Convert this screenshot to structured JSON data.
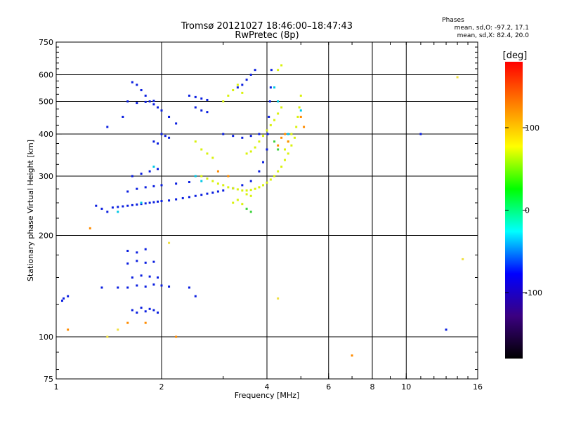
{
  "chart_data": {
    "type": "scatter",
    "title": "Tromsø 20121027 18:46:00–18:47:43",
    "subtitle": "RwPretec (8p)",
    "xlabel": "Frequency [MHz]",
    "ylabel": "Stationary phase Virtual Height [km]",
    "x_scale": "log",
    "y_scale": "log",
    "xlim": [
      1,
      16
    ],
    "ylim": [
      75,
      750
    ],
    "x_ticks": [
      {
        "value": 1,
        "label": "1"
      },
      {
        "value": 2,
        "label": "2"
      },
      {
        "value": 4,
        "label": "4"
      },
      {
        "value": 6,
        "label": "6"
      },
      {
        "value": 8,
        "label": "8"
      },
      {
        "value": 10,
        "label": "10"
      },
      {
        "value": 16,
        "label": "16"
      }
    ],
    "y_ticks": [
      {
        "value": 75,
        "label": "75"
      },
      {
        "value": 100,
        "label": "100"
      },
      {
        "value": 200,
        "label": "200"
      },
      {
        "value": 300,
        "label": "300"
      },
      {
        "value": 400,
        "label": "400"
      },
      {
        "value": 500,
        "label": "500"
      },
      {
        "value": 600,
        "label": "600"
      },
      {
        "value": 750,
        "label": "750"
      }
    ],
    "x_grid": [
      2,
      4,
      6,
      8,
      10
    ],
    "y_grid": [
      100,
      200,
      300,
      400,
      500,
      600
    ],
    "grid": true,
    "phase_legend": {
      "title": "Phases",
      "line1": "mean, sd,O: -97.2, 17.1",
      "line2": "mean, sd,X:  82.4, 20.0"
    },
    "colorbar": {
      "label": "[deg]",
      "range": [
        -180,
        180
      ],
      "ticks": [
        {
          "value": 100,
          "label": "100"
        },
        {
          "value": 0,
          "label": "0"
        },
        {
          "value": -100,
          "label": "-100"
        }
      ],
      "stops": [
        "#000000",
        "#3b0080",
        "#0000ff",
        "#00ffff",
        "#00ff00",
        "#ffff00",
        "#ff8000",
        "#ff0000"
      ]
    },
    "series": [
      {
        "color": "#0a1ee0",
        "points": [
          [
            1.05,
            130
          ],
          [
            1.08,
            132
          ],
          [
            1.04,
            128
          ],
          [
            1.3,
            245
          ],
          [
            1.35,
            240
          ],
          [
            1.4,
            235
          ],
          [
            1.45,
            242
          ],
          [
            1.5,
            243
          ],
          [
            1.55,
            244
          ],
          [
            1.6,
            245
          ],
          [
            1.65,
            246
          ],
          [
            1.7,
            247
          ],
          [
            1.75,
            248
          ],
          [
            1.8,
            249
          ],
          [
            1.85,
            250
          ],
          [
            1.9,
            251
          ],
          [
            1.95,
            252
          ],
          [
            2.0,
            253
          ],
          [
            2.1,
            254
          ],
          [
            2.2,
            256
          ],
          [
            2.3,
            258
          ],
          [
            2.4,
            260
          ],
          [
            2.5,
            262
          ],
          [
            2.6,
            264
          ],
          [
            2.7,
            266
          ],
          [
            2.8,
            268
          ],
          [
            2.9,
            270
          ],
          [
            3.0,
            272
          ],
          [
            3.2,
            276
          ],
          [
            3.4,
            282
          ],
          [
            3.6,
            290
          ],
          [
            3.8,
            310
          ],
          [
            3.9,
            330
          ],
          [
            4.0,
            360
          ],
          [
            4.02,
            400
          ],
          [
            4.05,
            450
          ],
          [
            4.08,
            500
          ],
          [
            4.1,
            550
          ],
          [
            4.12,
            620
          ],
          [
            1.6,
            270
          ],
          [
            1.7,
            275
          ],
          [
            1.8,
            278
          ],
          [
            1.9,
            280
          ],
          [
            2.0,
            282
          ],
          [
            2.2,
            285
          ],
          [
            2.4,
            288
          ],
          [
            1.65,
            300
          ],
          [
            1.75,
            305
          ],
          [
            1.85,
            310
          ],
          [
            1.95,
            315
          ],
          [
            1.65,
            120
          ],
          [
            1.7,
            118
          ],
          [
            1.75,
            122
          ],
          [
            1.8,
            119
          ],
          [
            1.85,
            121
          ],
          [
            1.9,
            120
          ],
          [
            1.95,
            118
          ],
          [
            1.6,
            140
          ],
          [
            1.7,
            142
          ],
          [
            1.8,
            141
          ],
          [
            1.9,
            143
          ],
          [
            2.0,
            142
          ],
          [
            2.1,
            141
          ],
          [
            1.65,
            150
          ],
          [
            1.75,
            152
          ],
          [
            1.85,
            151
          ],
          [
            1.95,
            150
          ],
          [
            1.6,
            165
          ],
          [
            1.7,
            168
          ],
          [
            1.8,
            166
          ],
          [
            1.9,
            167
          ],
          [
            1.6,
            180
          ],
          [
            1.7,
            178
          ],
          [
            1.8,
            182
          ],
          [
            1.65,
            570
          ],
          [
            1.7,
            560
          ],
          [
            1.75,
            540
          ],
          [
            1.8,
            520
          ],
          [
            1.85,
            500
          ],
          [
            1.9,
            490
          ],
          [
            1.95,
            480
          ],
          [
            2.0,
            470
          ],
          [
            2.1,
            450
          ],
          [
            2.2,
            430
          ],
          [
            1.6,
            500
          ],
          [
            1.7,
            495
          ],
          [
            1.8,
            498
          ],
          [
            1.9,
            502
          ],
          [
            2.4,
            520
          ],
          [
            2.5,
            515
          ],
          [
            2.6,
            510
          ],
          [
            2.7,
            505
          ],
          [
            2.5,
            480
          ],
          [
            2.6,
            470
          ],
          [
            2.7,
            465
          ],
          [
            3.0,
            400
          ],
          [
            3.2,
            395
          ],
          [
            3.4,
            390
          ],
          [
            3.6,
            395
          ],
          [
            3.8,
            400
          ],
          [
            3.3,
            550
          ],
          [
            3.4,
            560
          ],
          [
            3.5,
            580
          ],
          [
            3.6,
            600
          ],
          [
            3.7,
            620
          ],
          [
            2.0,
            400
          ],
          [
            2.05,
            395
          ],
          [
            2.1,
            390
          ],
          [
            1.9,
            380
          ],
          [
            1.95,
            375
          ],
          [
            1.35,
            140
          ],
          [
            1.5,
            140
          ],
          [
            2.4,
            140
          ],
          [
            2.5,
            132
          ],
          [
            11.0,
            400
          ],
          [
            13.0,
            105
          ],
          [
            1.4,
            420
          ],
          [
            1.55,
            450
          ]
        ]
      },
      {
        "color": "#d9f20c",
        "points": [
          [
            2.6,
            300
          ],
          [
            2.7,
            295
          ],
          [
            2.8,
            290
          ],
          [
            2.9,
            285
          ],
          [
            3.0,
            282
          ],
          [
            3.1,
            278
          ],
          [
            3.2,
            276
          ],
          [
            3.3,
            274
          ],
          [
            3.4,
            272
          ],
          [
            3.5,
            272
          ],
          [
            3.6,
            273
          ],
          [
            3.7,
            275
          ],
          [
            3.8,
            278
          ],
          [
            3.9,
            282
          ],
          [
            4.0,
            287
          ],
          [
            4.1,
            293
          ],
          [
            4.2,
            300
          ],
          [
            4.3,
            310
          ],
          [
            4.4,
            320
          ],
          [
            4.5,
            335
          ],
          [
            4.6,
            350
          ],
          [
            4.7,
            370
          ],
          [
            4.8,
            390
          ],
          [
            4.85,
            420
          ],
          [
            4.9,
            450
          ],
          [
            4.95,
            480
          ],
          [
            5.0,
            520
          ],
          [
            4.3,
            620
          ],
          [
            4.4,
            640
          ],
          [
            4.5,
            360
          ],
          [
            4.6,
            380
          ],
          [
            4.7,
            400
          ],
          [
            3.5,
            350
          ],
          [
            3.6,
            355
          ],
          [
            3.7,
            365
          ],
          [
            3.8,
            380
          ],
          [
            3.9,
            395
          ],
          [
            4.0,
            410
          ],
          [
            4.1,
            425
          ],
          [
            4.2,
            440
          ],
          [
            4.3,
            460
          ],
          [
            4.4,
            480
          ],
          [
            3.0,
            500
          ],
          [
            3.1,
            520
          ],
          [
            3.2,
            540
          ],
          [
            3.3,
            560
          ],
          [
            3.4,
            530
          ],
          [
            2.5,
            380
          ],
          [
            2.6,
            360
          ],
          [
            2.7,
            350
          ],
          [
            2.8,
            340
          ],
          [
            3.2,
            250
          ],
          [
            3.3,
            255
          ],
          [
            3.4,
            248
          ],
          [
            3.5,
            265
          ],
          [
            3.6,
            262
          ]
        ]
      },
      {
        "color": "#ff8c00",
        "points": [
          [
            4.4,
            390
          ],
          [
            4.5,
            400
          ],
          [
            4.6,
            380
          ],
          [
            4.3,
            370
          ],
          [
            3.1,
            300
          ],
          [
            2.9,
            310
          ],
          [
            1.25,
            210
          ],
          [
            1.08,
            105
          ],
          [
            1.8,
            110
          ],
          [
            1.6,
            110
          ],
          [
            2.2,
            100
          ],
          [
            7.0,
            88
          ],
          [
            5.0,
            450
          ],
          [
            5.1,
            420
          ]
        ]
      },
      {
        "color": "#00c8e6",
        "points": [
          [
            1.9,
            320
          ],
          [
            2.5,
            300
          ],
          [
            2.6,
            290
          ],
          [
            4.2,
            550
          ],
          [
            4.3,
            500
          ],
          [
            5.0,
            470
          ],
          [
            4.6,
            400
          ],
          [
            1.75,
            250
          ],
          [
            1.5,
            235
          ]
        ]
      },
      {
        "color": "#3cd23c",
        "points": [
          [
            3.5,
            240
          ],
          [
            3.6,
            235
          ],
          [
            4.2,
            380
          ],
          [
            4.3,
            360
          ]
        ]
      },
      {
        "color": "#f0e040",
        "points": [
          [
            14.0,
            590
          ],
          [
            14.5,
            170
          ],
          [
            1.4,
            100
          ],
          [
            1.5,
            105
          ],
          [
            4.3,
            130
          ],
          [
            2.1,
            190
          ]
        ]
      }
    ]
  }
}
